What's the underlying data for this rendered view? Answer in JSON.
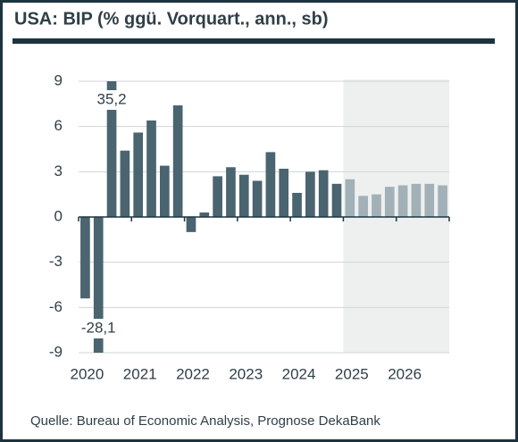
{
  "chart_data": {
    "type": "bar",
    "title": "USA: BIP (% ggü. Vorquart., ann., sb)",
    "source": "Quelle: Bureau of Economic Analysis, Prognose DekaBank",
    "categories": [
      "2020",
      null,
      null,
      null,
      "2021",
      null,
      null,
      null,
      "2022",
      null,
      null,
      null,
      "2023",
      null,
      null,
      null,
      "2024",
      null,
      null,
      null,
      "2025",
      null,
      null,
      null,
      "2026",
      null,
      null,
      null
    ],
    "values": [
      -5.4,
      -28.1,
      35.2,
      4.4,
      5.6,
      6.4,
      3.4,
      7.4,
      -1.0,
      0.3,
      2.7,
      3.3,
      2.8,
      2.4,
      4.3,
      3.2,
      1.6,
      3.0,
      3.1,
      2.2,
      2.5,
      1.4,
      1.5,
      2.0,
      2.1,
      2.2,
      2.2,
      2.1
    ],
    "value_labels": [
      null,
      "-28,1",
      "35,2",
      null,
      null,
      null,
      null,
      null,
      null,
      null,
      null,
      null,
      null,
      null,
      null,
      null,
      null,
      null,
      null,
      null,
      null,
      null,
      null,
      null,
      null,
      null,
      null,
      null
    ],
    "forecast": [
      false,
      false,
      false,
      false,
      false,
      false,
      false,
      false,
      false,
      false,
      false,
      false,
      false,
      false,
      false,
      false,
      false,
      false,
      false,
      false,
      true,
      true,
      true,
      true,
      true,
      true,
      true,
      true
    ],
    "color": "#4a6470",
    "forecast_color": "#a2b1b7",
    "shade_color": "#eef0f0",
    "ylim": [
      -9,
      9
    ],
    "yticks": [
      9,
      6,
      3,
      0,
      -3,
      -6,
      -9
    ],
    "grid": true
  }
}
